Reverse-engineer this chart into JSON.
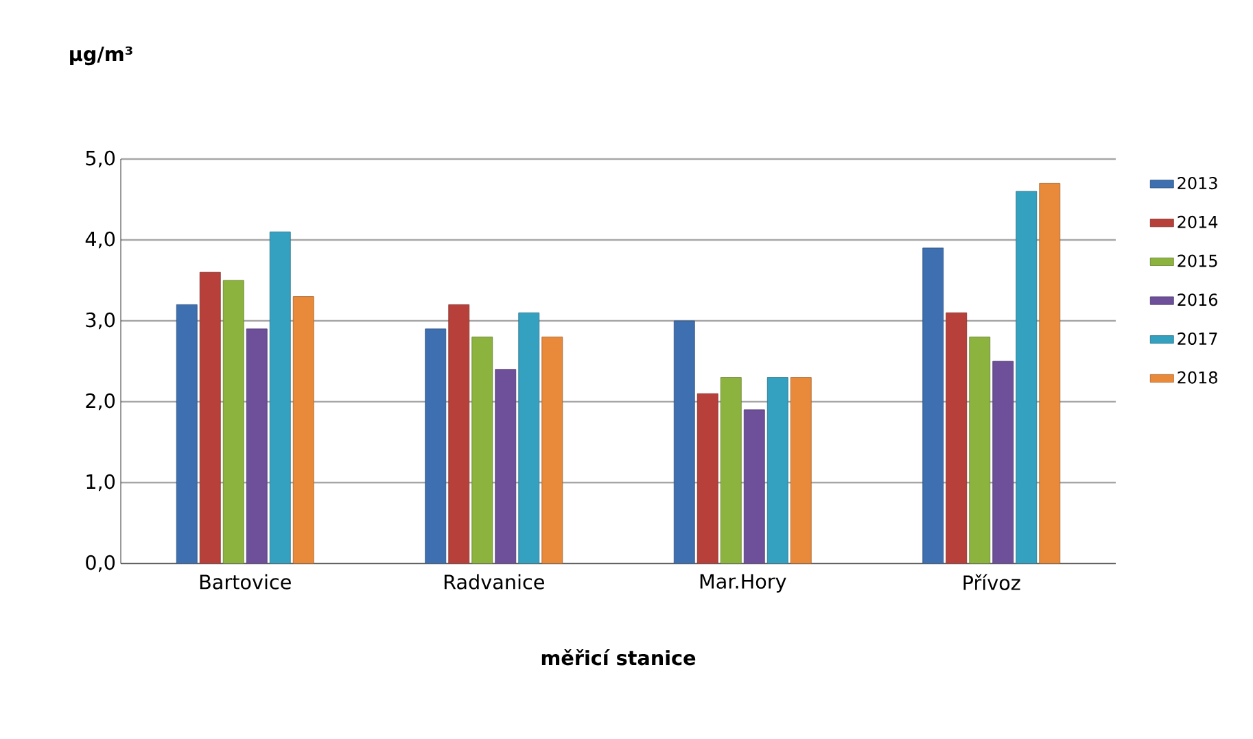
{
  "chart_data": {
    "type": "bar",
    "xlabel": "měřicí stanice",
    "ylabel": "µg/m³",
    "categories": [
      "Bartovice",
      "Radvanice",
      "Mar.Hory",
      "Přívoz"
    ],
    "series": [
      {
        "name": "2013",
        "color": "#3e6fb0",
        "values": [
          3.2,
          2.9,
          3.0,
          3.9
        ]
      },
      {
        "name": "2014",
        "color": "#b8403a",
        "values": [
          3.6,
          3.2,
          2.1,
          3.1
        ]
      },
      {
        "name": "2015",
        "color": "#8db33f",
        "values": [
          3.5,
          2.8,
          2.3,
          2.8
        ]
      },
      {
        "name": "2016",
        "color": "#6e4f9a",
        "values": [
          2.9,
          2.4,
          1.9,
          2.5
        ]
      },
      {
        "name": "2017",
        "color": "#35a1c0",
        "values": [
          4.1,
          3.1,
          2.3,
          4.6
        ]
      },
      {
        "name": "2018",
        "color": "#e98a3a",
        "values": [
          3.3,
          2.8,
          2.3,
          4.7
        ]
      }
    ],
    "ylim": [
      0,
      5
    ],
    "yticks": [
      {
        "value": 0,
        "label": "0,0"
      },
      {
        "value": 1,
        "label": "1,0"
      },
      {
        "value": 2,
        "label": "2,0"
      },
      {
        "value": 3,
        "label": "3,0"
      },
      {
        "value": 4,
        "label": "4,0"
      },
      {
        "value": 5,
        "label": "5,0"
      }
    ],
    "grid": "y",
    "legend": "right"
  }
}
